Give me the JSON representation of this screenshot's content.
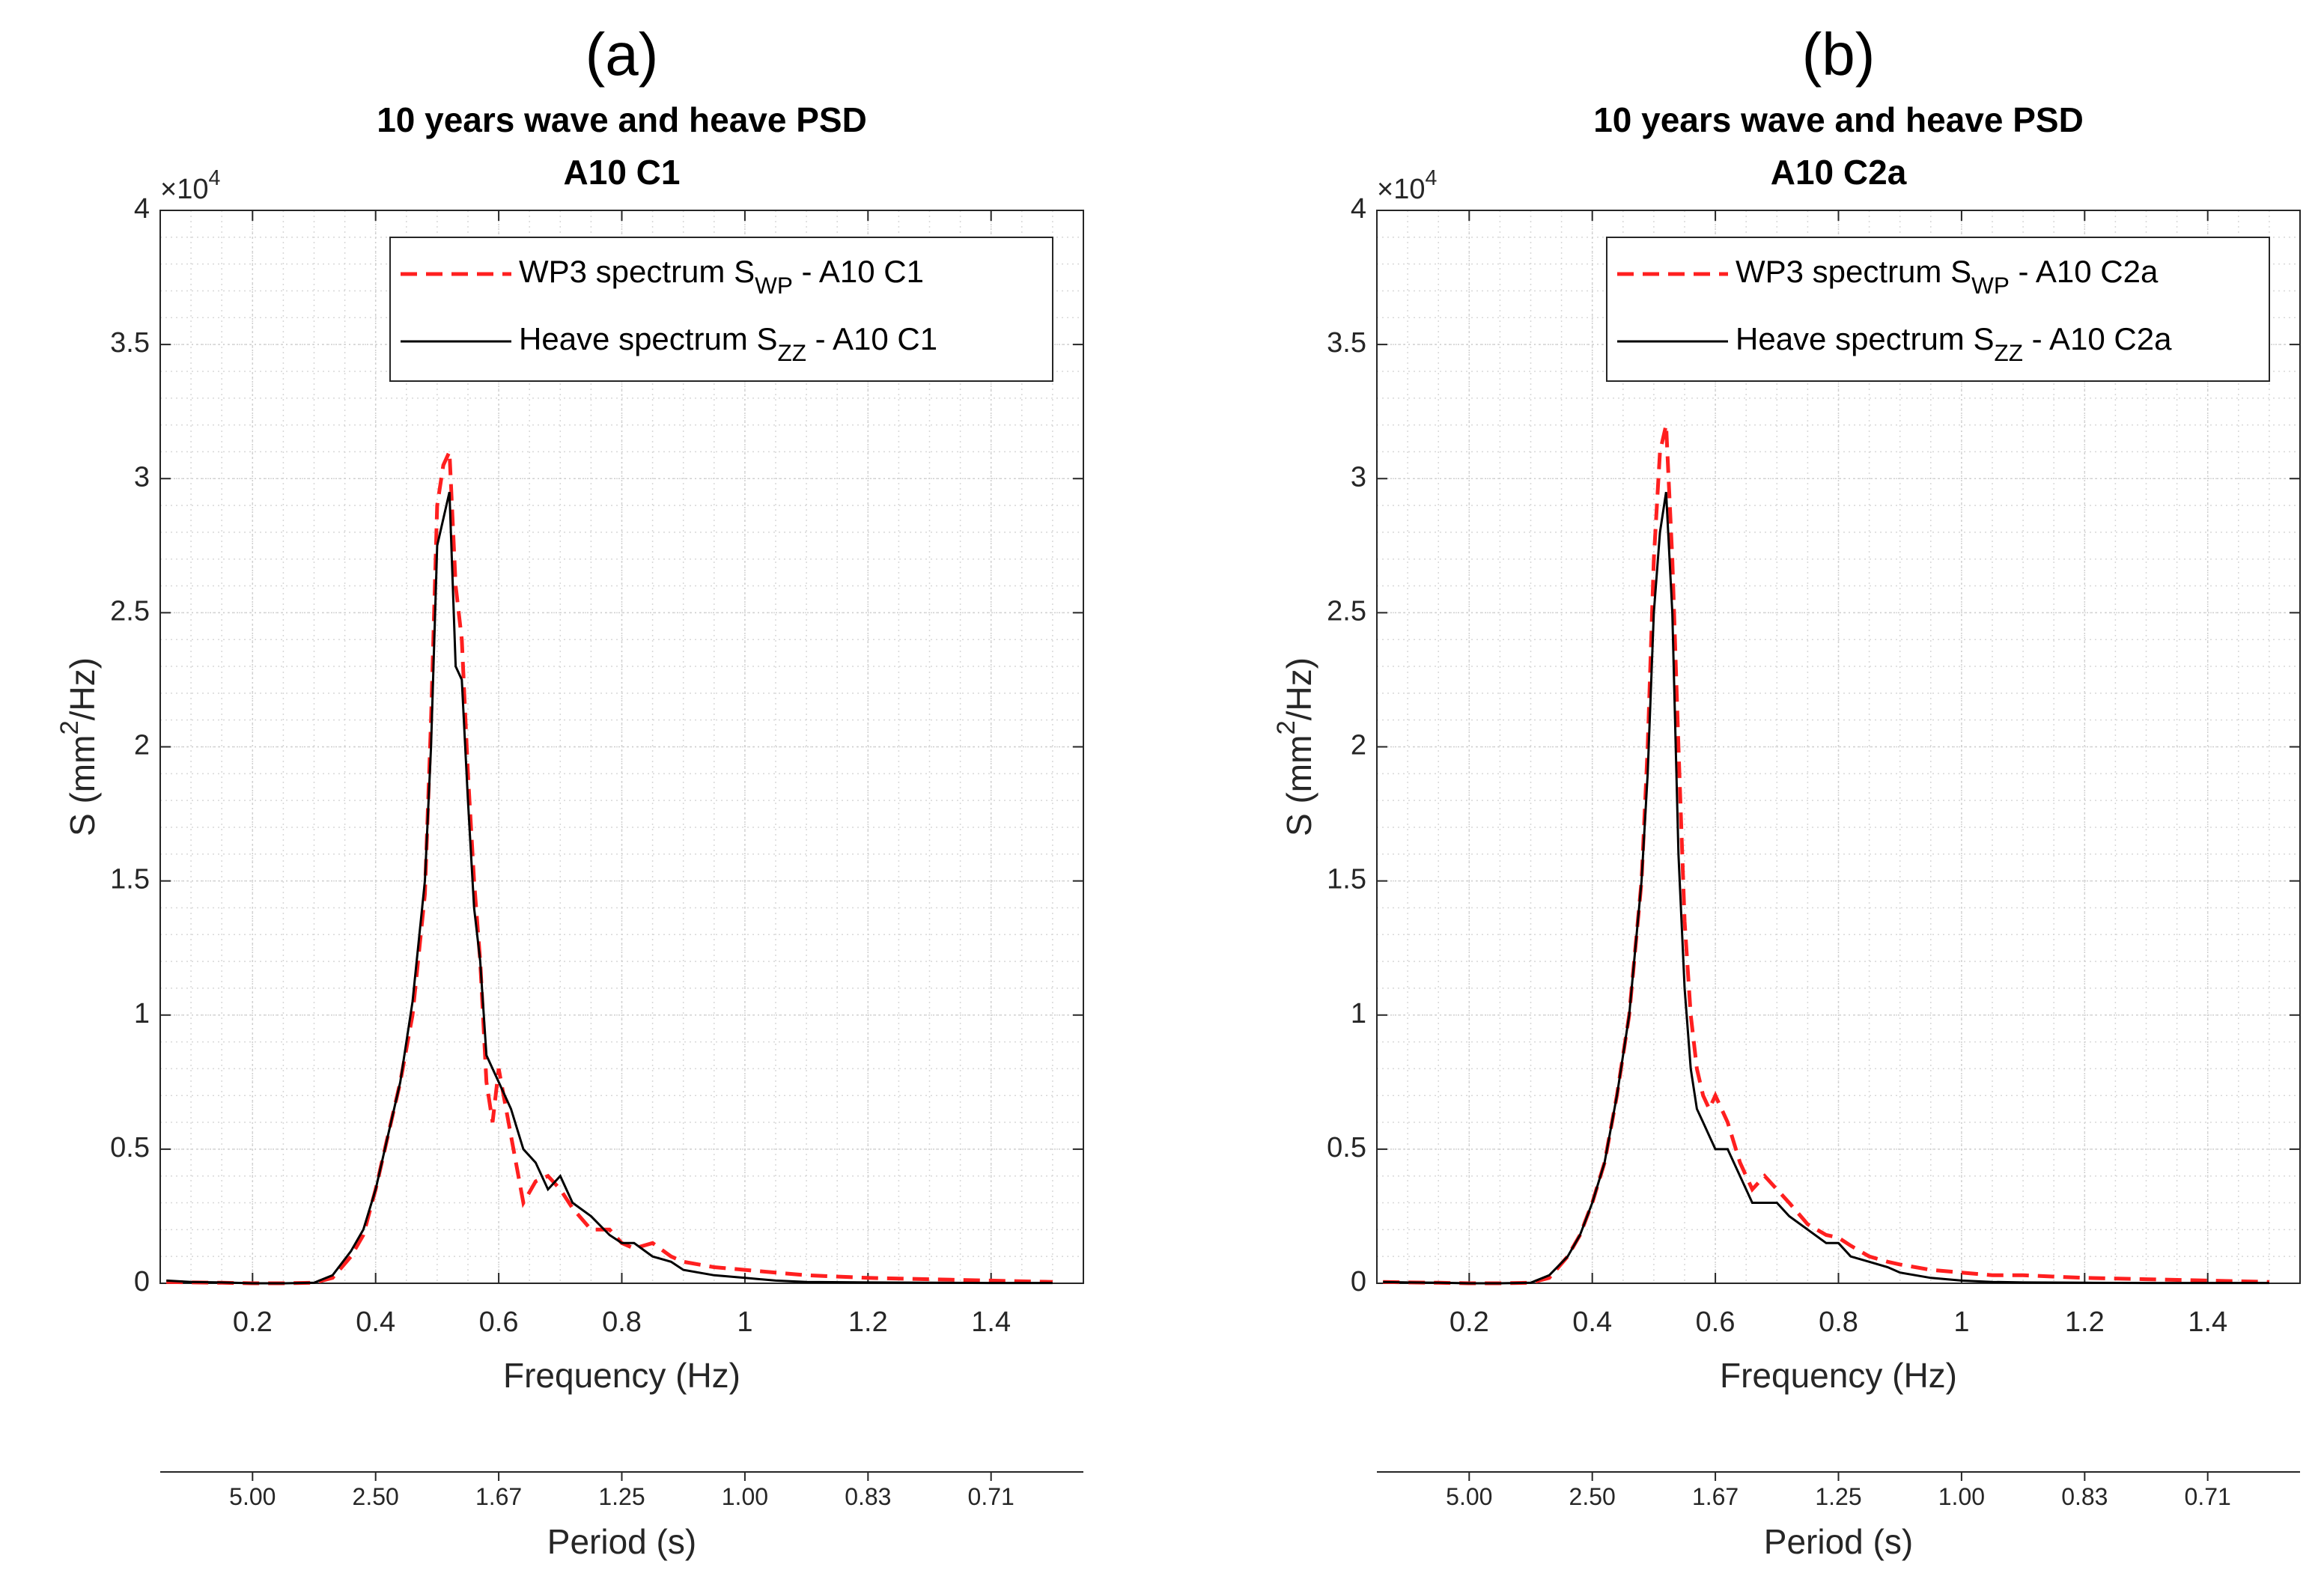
{
  "chart_data": [
    {
      "type": "line",
      "panel_label": "(a)",
      "title": "10 years wave and heave PSD",
      "subtitle": "A10 C1",
      "x_label": "Frequency (Hz)",
      "y_label": "S (mm^{2}/Hz)",
      "y_exponent": "×10^{4}",
      "x2_label": "Period (s)",
      "x2_scale": "reciprocal",
      "xlim": [
        0.05,
        1.55
      ],
      "xticks": [
        0.2,
        0.4,
        0.6,
        0.8,
        1,
        1.2,
        1.4
      ],
      "ylim": [
        0,
        4
      ],
      "yticks": [
        0,
        0.5,
        1,
        1.5,
        2,
        2.5,
        3,
        3.5,
        4
      ],
      "x2ticks": [
        {
          "value": 5,
          "label": "5.00"
        },
        {
          "value": 2.5,
          "label": "2.50"
        },
        {
          "value": 1.6667,
          "label": "1.67"
        },
        {
          "value": 1.25,
          "label": "1.25"
        },
        {
          "value": 1,
          "label": "1.00"
        },
        {
          "value": 0.8333,
          "label": "0.83"
        },
        {
          "value": 0.7143,
          "label": "0.71"
        }
      ],
      "grid": true,
      "minor_grid": true,
      "legend": "upper right",
      "x": [
        0.06,
        0.1,
        0.15,
        0.2,
        0.25,
        0.3,
        0.33,
        0.36,
        0.38,
        0.4,
        0.42,
        0.44,
        0.46,
        0.48,
        0.49,
        0.5,
        0.51,
        0.52,
        0.53,
        0.54,
        0.55,
        0.56,
        0.57,
        0.58,
        0.59,
        0.6,
        0.62,
        0.64,
        0.66,
        0.68,
        0.7,
        0.72,
        0.75,
        0.78,
        0.8,
        0.82,
        0.85,
        0.88,
        0.9,
        0.95,
        1.0,
        1.05,
        1.1,
        1.2,
        1.3,
        1.4,
        1.5
      ],
      "series": [
        {
          "name": "WP3 spectrum S_{WP} -  A10 C1",
          "color": "#ff1f1f",
          "dash": "dashed",
          "values": [
            0.005,
            0.003,
            0.002,
            0,
            0,
            0.002,
            0.02,
            0.1,
            0.18,
            0.35,
            0.55,
            0.75,
            1.0,
            1.45,
            2.1,
            2.9,
            3.05,
            3.1,
            2.6,
            2.4,
            1.9,
            1.5,
            1.2,
            0.75,
            0.6,
            0.8,
            0.55,
            0.3,
            0.38,
            0.4,
            0.35,
            0.28,
            0.2,
            0.2,
            0.15,
            0.13,
            0.15,
            0.1,
            0.08,
            0.06,
            0.05,
            0.04,
            0.03,
            0.02,
            0.015,
            0.01,
            0.005
          ]
        },
        {
          "name": "Heave spectrum S_{ZZ} -  A10 C1",
          "color": "#000000",
          "dash": "solid",
          "values": [
            0.01,
            0.005,
            0.003,
            0,
            0,
            0.002,
            0.03,
            0.12,
            0.2,
            0.35,
            0.55,
            0.75,
            1.05,
            1.5,
            2.0,
            2.75,
            2.85,
            2.95,
            2.3,
            2.25,
            1.8,
            1.4,
            1.2,
            0.85,
            0.8,
            0.75,
            0.65,
            0.5,
            0.45,
            0.35,
            0.4,
            0.3,
            0.25,
            0.18,
            0.15,
            0.15,
            0.1,
            0.08,
            0.05,
            0.03,
            0.02,
            0.01,
            0.005,
            0.003,
            0.002,
            0.001,
            0.001
          ]
        }
      ]
    },
    {
      "type": "line",
      "panel_label": "(b)",
      "title": "10 years wave and heave PSD",
      "subtitle": "A10 C2a",
      "x_label": "Frequency (Hz)",
      "y_label": "S (mm^{2}/Hz)",
      "y_exponent": "×10^{4}",
      "x2_label": "Period (s)",
      "x2_scale": "reciprocal",
      "xlim": [
        0.05,
        1.55
      ],
      "xticks": [
        0.2,
        0.4,
        0.6,
        0.8,
        1,
        1.2,
        1.4
      ],
      "ylim": [
        0,
        4
      ],
      "yticks": [
        0,
        0.5,
        1,
        1.5,
        2,
        2.5,
        3,
        3.5,
        4
      ],
      "x2ticks": [
        {
          "value": 5,
          "label": "5.00"
        },
        {
          "value": 2.5,
          "label": "2.50"
        },
        {
          "value": 1.6667,
          "label": "1.67"
        },
        {
          "value": 1.25,
          "label": "1.25"
        },
        {
          "value": 1,
          "label": "1.00"
        },
        {
          "value": 0.8333,
          "label": "0.83"
        },
        {
          "value": 0.7143,
          "label": "0.71"
        }
      ],
      "grid": true,
      "minor_grid": true,
      "legend": "upper right",
      "x": [
        0.06,
        0.1,
        0.15,
        0.2,
        0.25,
        0.3,
        0.33,
        0.36,
        0.38,
        0.4,
        0.42,
        0.44,
        0.46,
        0.48,
        0.49,
        0.5,
        0.51,
        0.52,
        0.53,
        0.54,
        0.55,
        0.56,
        0.57,
        0.58,
        0.59,
        0.6,
        0.62,
        0.64,
        0.66,
        0.68,
        0.7,
        0.72,
        0.75,
        0.78,
        0.8,
        0.82,
        0.85,
        0.88,
        0.9,
        0.95,
        1.0,
        1.05,
        1.1,
        1.2,
        1.3,
        1.4,
        1.5
      ],
      "series": [
        {
          "name": "WP3 spectrum S_{WP} -  A10 C2a",
          "color": "#ff1f1f",
          "dash": "dashed",
          "values": [
            0.005,
            0.003,
            0.002,
            0,
            0,
            0.002,
            0.02,
            0.1,
            0.18,
            0.3,
            0.45,
            0.7,
            1.0,
            1.5,
            2.0,
            2.7,
            3.1,
            3.2,
            2.7,
            2.0,
            1.35,
            1.0,
            0.8,
            0.7,
            0.65,
            0.7,
            0.6,
            0.45,
            0.35,
            0.4,
            0.35,
            0.3,
            0.22,
            0.18,
            0.17,
            0.14,
            0.1,
            0.08,
            0.07,
            0.05,
            0.04,
            0.03,
            0.03,
            0.02,
            0.015,
            0.01,
            0.005
          ]
        },
        {
          "name": "Heave spectrum S_{ZZ} -  A10 C2a",
          "color": "#000000",
          "dash": "solid",
          "values": [
            0.005,
            0.003,
            0.002,
            0,
            0,
            0.002,
            0.03,
            0.1,
            0.18,
            0.3,
            0.45,
            0.7,
            1.0,
            1.5,
            1.9,
            2.5,
            2.8,
            2.95,
            2.5,
            1.6,
            1.1,
            0.8,
            0.65,
            0.6,
            0.55,
            0.5,
            0.5,
            0.4,
            0.3,
            0.3,
            0.3,
            0.25,
            0.2,
            0.15,
            0.15,
            0.1,
            0.08,
            0.06,
            0.04,
            0.02,
            0.01,
            0.005,
            0.003,
            0.002,
            0.001,
            0.001,
            0.001
          ]
        }
      ]
    }
  ]
}
